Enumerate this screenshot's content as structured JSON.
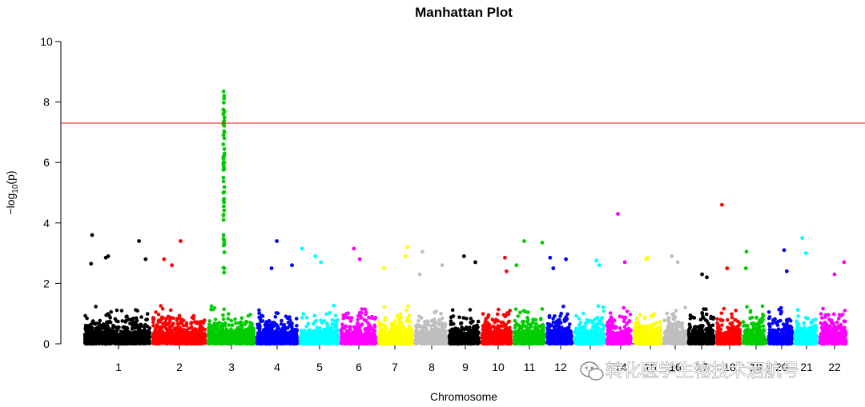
{
  "chart_data": {
    "type": "scatter",
    "title": "Manhattan Plot",
    "xlabel": "Chromosome",
    "ylabel": "-log10(p)",
    "ylim": [
      0,
      10
    ],
    "yticks": [
      0,
      2,
      4,
      6,
      8,
      10
    ],
    "threshold": 7.3,
    "threshold_color": "#ff0000",
    "series": [
      {
        "chromosome": "1",
        "color": "#000000",
        "max": 3.6,
        "peaks": [
          3.6,
          3.4,
          2.9,
          2.85,
          2.8,
          2.65
        ]
      },
      {
        "chromosome": "2",
        "color": "#ff0000",
        "max": 3.4,
        "peaks": [
          3.4,
          2.8,
          2.6
        ]
      },
      {
        "chromosome": "3",
        "color": "#00cc00",
        "max": 8.35,
        "peaks": [
          8.35,
          8.2,
          7.6,
          7.3,
          7.0,
          6.6,
          6.3,
          5.8,
          5.5,
          5.0,
          4.8,
          4.1,
          3.6,
          3.25,
          2.5
        ]
      },
      {
        "chromosome": "4",
        "color": "#0000ff",
        "max": 3.4,
        "peaks": [
          3.4,
          2.6,
          2.5
        ]
      },
      {
        "chromosome": "5",
        "color": "#00ffff",
        "max": 3.15,
        "peaks": [
          3.15,
          2.9,
          2.7
        ]
      },
      {
        "chromosome": "6",
        "color": "#ff00ff",
        "max": 3.15,
        "peaks": [
          3.15,
          2.8
        ]
      },
      {
        "chromosome": "7",
        "color": "#ffff00",
        "max": 3.2,
        "peaks": [
          3.2,
          2.9,
          2.5
        ]
      },
      {
        "chromosome": "8",
        "color": "#bebebe",
        "max": 3.05,
        "peaks": [
          3.05,
          2.6,
          2.3
        ]
      },
      {
        "chromosome": "9",
        "color": "#000000",
        "max": 2.9,
        "peaks": [
          2.9,
          2.7
        ]
      },
      {
        "chromosome": "10",
        "color": "#ff0000",
        "max": 2.85,
        "peaks": [
          2.85,
          2.4
        ]
      },
      {
        "chromosome": "11",
        "color": "#00cc00",
        "max": 3.4,
        "peaks": [
          3.4,
          3.35,
          2.6
        ]
      },
      {
        "chromosome": "12",
        "color": "#0000ff",
        "max": 2.85,
        "peaks": [
          2.85,
          2.8,
          2.5
        ]
      },
      {
        "chromosome": "13",
        "color": "#00ffff",
        "max": 2.75,
        "peaks": [
          2.75,
          2.6
        ]
      },
      {
        "chromosome": "14",
        "color": "#ff00ff",
        "max": 4.3,
        "peaks": [
          4.3,
          2.7
        ]
      },
      {
        "chromosome": "15",
        "color": "#ffff00",
        "max": 2.85,
        "peaks": [
          2.85,
          2.8
        ]
      },
      {
        "chromosome": "16",
        "color": "#bebebe",
        "max": 2.9,
        "peaks": [
          2.9,
          2.7
        ]
      },
      {
        "chromosome": "17",
        "color": "#000000",
        "max": 2.3,
        "peaks": [
          2.3,
          2.2
        ]
      },
      {
        "chromosome": "18",
        "color": "#ff0000",
        "max": 4.6,
        "peaks": [
          4.6,
          2.5
        ]
      },
      {
        "chromosome": "19",
        "color": "#00cc00",
        "max": 3.05,
        "peaks": [
          3.05,
          2.5
        ]
      },
      {
        "chromosome": "20",
        "color": "#0000ff",
        "max": 3.1,
        "peaks": [
          3.1,
          2.4
        ]
      },
      {
        "chromosome": "21",
        "color": "#00ffff",
        "max": 3.5,
        "peaks": [
          3.5,
          3.0
        ]
      },
      {
        "chromosome": "22",
        "color": "#ff00ff",
        "max": 2.7,
        "peaks": [
          2.7,
          2.3
        ]
      }
    ],
    "visible_x_tick_labels": [
      "1",
      "2",
      "3",
      "4",
      "5",
      "6",
      "7",
      "8",
      "9",
      "10",
      "11",
      "12",
      "13",
      "14",
      "15",
      "16",
      "17",
      "18",
      "19",
      "20",
      "21",
      "22"
    ],
    "grid": false,
    "legend": "none"
  },
  "watermark": {
    "text": "转化医学生物技术酒航号",
    "icon": "wechat-icon"
  }
}
